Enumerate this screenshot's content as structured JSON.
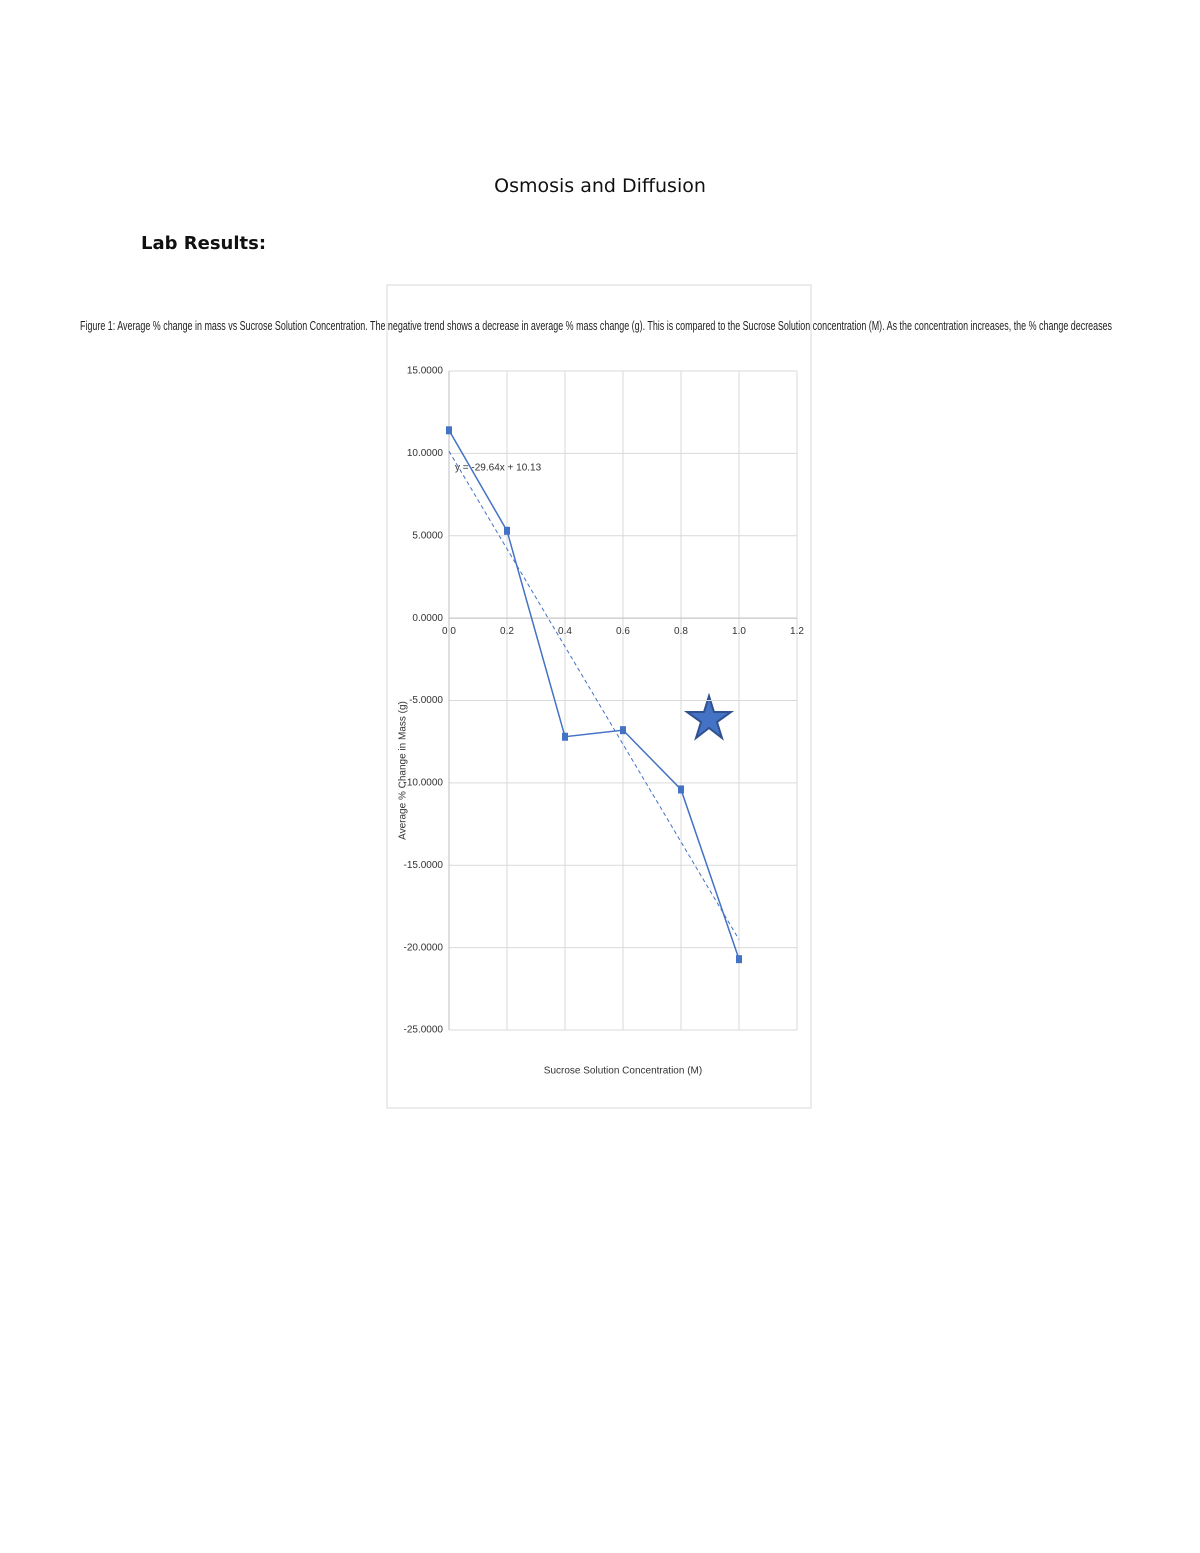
{
  "header": {
    "title": "Osmosis and Diffusion",
    "section": "Lab Results:"
  },
  "figure": {
    "caption": "Figure 1: Average % change in mass vs Sucrose Solution Concentration. The negative trend shows a decrease in average % mass change (g). This is compared to the Sucrose Solution concentration (M). As the concentration increases, the % change decreases"
  },
  "chart_data": {
    "type": "line",
    "x_label": "Sucrose Solution Concentration (M)",
    "y_label": "Average % Change in Mass (g)",
    "x": [
      0,
      0.2,
      0.4,
      0.6,
      0.8,
      1.0
    ],
    "series": [
      {
        "name": "Average % Change in Mass",
        "color": "#4472c4",
        "values": [
          11.4,
          5.3,
          -7.2,
          -6.8,
          -10.4,
          -20.7
        ]
      }
    ],
    "trendline": {
      "slope": -29.64,
      "intercept": 10.13,
      "label": "y = -29.64x + 10.13"
    },
    "xlim": [
      0,
      1.2
    ],
    "xticks": [
      {
        "value": 0,
        "label": "0.0"
      },
      0.2,
      0.4,
      0.6,
      0.8,
      {
        "value": 1.0,
        "label": "1.0"
      },
      1.2
    ],
    "ylim": [
      -25,
      15
    ],
    "yticks": [
      {
        "value": 15,
        "label": "15.0000"
      },
      {
        "value": 10,
        "label": "10.0000"
      },
      {
        "value": 5,
        "label": "5.0000"
      },
      {
        "value": 0,
        "label": "0.0000"
      },
      {
        "value": -5,
        "label": "-5.0000"
      },
      {
        "value": -10,
        "label": "-10.0000"
      },
      {
        "value": -15,
        "label": "-15.0000"
      },
      {
        "value": -20,
        "label": "-20.0000"
      },
      {
        "value": -25,
        "label": "-25.0000"
      }
    ],
    "grid": true
  }
}
